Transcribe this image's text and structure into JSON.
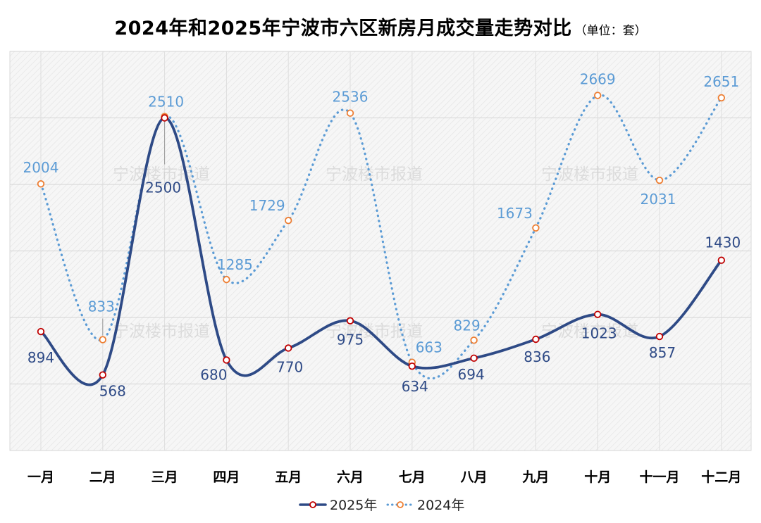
{
  "title": "2024年和2025年宁波市六区新房月成交量走势对比",
  "subtitle": "（单位：套）",
  "watermark": "宁波楼市报道",
  "chart_data": {
    "type": "line",
    "categories": [
      "一月",
      "二月",
      "三月",
      "四月",
      "五月",
      "六月",
      "七月",
      "八月",
      "九月",
      "十月",
      "十一月",
      "十二月"
    ],
    "series": [
      {
        "name": "2025年",
        "values": [
          894,
          568,
          2500,
          680,
          770,
          975,
          634,
          694,
          836,
          1023,
          857,
          1430
        ],
        "color": "#2E4A86",
        "style": "solid-smooth",
        "marker_color": "#C00000"
      },
      {
        "name": "2024年",
        "values": [
          2004,
          833,
          2510,
          1285,
          1729,
          2536,
          663,
          829,
          1673,
          2669,
          2031,
          2651
        ],
        "color": "#5B9BD5",
        "style": "dotted-smooth",
        "marker_color": "#ED7D31"
      }
    ],
    "ylim": [
      0,
      3000
    ],
    "grid": true,
    "legend": "bottom-center"
  }
}
